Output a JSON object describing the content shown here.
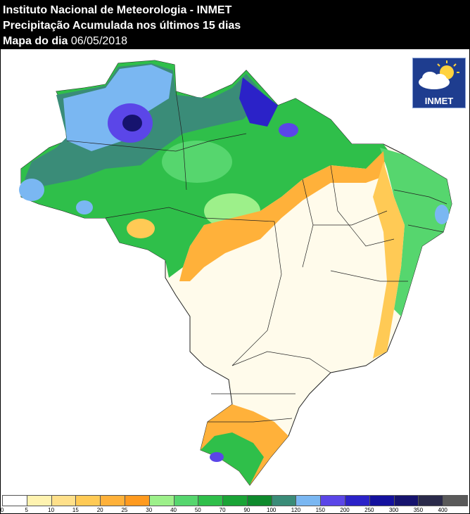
{
  "header": {
    "line1": "Instituto Nacional de Meteorologia - INMET",
    "line2": "Precipitação Acumulada nos últimos 15 dias",
    "line3_label": "Mapa do dia",
    "line3_date": "06/05/2018"
  },
  "logo": {
    "text": "INMET"
  },
  "legend": {
    "bins": [
      {
        "label": "0",
        "color": "#ffffff"
      },
      {
        "label": "5",
        "color": "#fefbe6"
      },
      {
        "label": "10",
        "color": "#fff3b0"
      },
      {
        "label": "15",
        "color": "#ffe08a"
      },
      {
        "label": "20",
        "color": "#ffca55"
      },
      {
        "label": "25",
        "color": "#ffb13a"
      },
      {
        "label": "30",
        "color": "#ff9a1f"
      },
      {
        "label": "40",
        "color": "#9df08a"
      },
      {
        "label": "50",
        "color": "#56d66e"
      },
      {
        "label": "70",
        "color": "#2fbf4a"
      },
      {
        "label": "90",
        "color": "#1aa436"
      },
      {
        "label": "100",
        "color": "#0e8a2c"
      },
      {
        "label": "120",
        "color": "#3a8c78"
      },
      {
        "label": "150",
        "color": "#7ab7f2"
      },
      {
        "label": "200",
        "color": "#5b46e8"
      },
      {
        "label": "250",
        "color": "#2b22c8"
      },
      {
        "label": "300",
        "color": "#14119e"
      },
      {
        "label": "350",
        "color": "#16136e"
      },
      {
        "label": "400",
        "color": "#2a2a4a"
      }
    ],
    "last_color": "#5a5a5a"
  }
}
